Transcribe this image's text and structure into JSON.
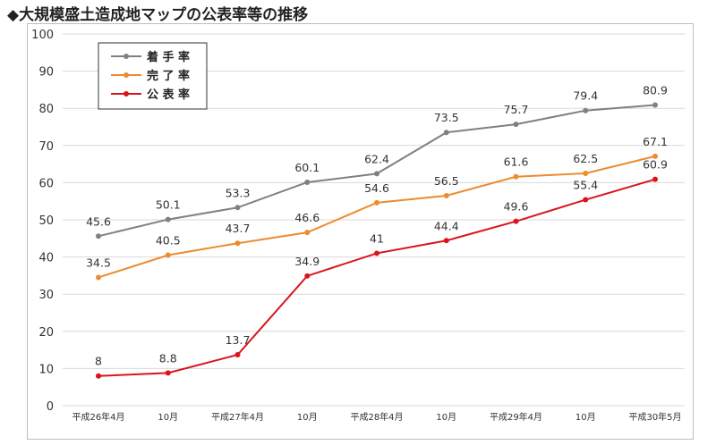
{
  "title": "◆大規模盛土造成地マップの公表率等の推移",
  "chart_data": {
    "type": "line",
    "title": "◆大規模盛土造成地マップの公表率等の推移",
    "xlabel": "",
    "ylabel": "",
    "ylim": [
      0,
      100
    ],
    "yticks": [
      0,
      10,
      20,
      30,
      40,
      50,
      60,
      70,
      80,
      90,
      100
    ],
    "grid": true,
    "legend": "top-left",
    "categories": [
      "平成26年4月",
      "10月",
      "平成27年4月",
      "10月",
      "平成28年4月",
      "10月",
      "平成29年4月",
      "10月",
      "平成30年5月"
    ],
    "series": [
      {
        "name": "着 手 率",
        "color": "#808080",
        "values": [
          45.6,
          50.1,
          53.3,
          60.1,
          62.4,
          73.5,
          75.7,
          79.4,
          80.9
        ]
      },
      {
        "name": "完 了 率",
        "color": "#ed8b2f",
        "values": [
          34.5,
          40.5,
          43.7,
          46.6,
          54.6,
          56.5,
          61.6,
          62.5,
          67.1
        ]
      },
      {
        "name": "公 表 率",
        "color": "#d9141b",
        "values": [
          8,
          8.8,
          13.7,
          34.9,
          41,
          44.4,
          49.6,
          55.4,
          60.9
        ]
      }
    ]
  }
}
